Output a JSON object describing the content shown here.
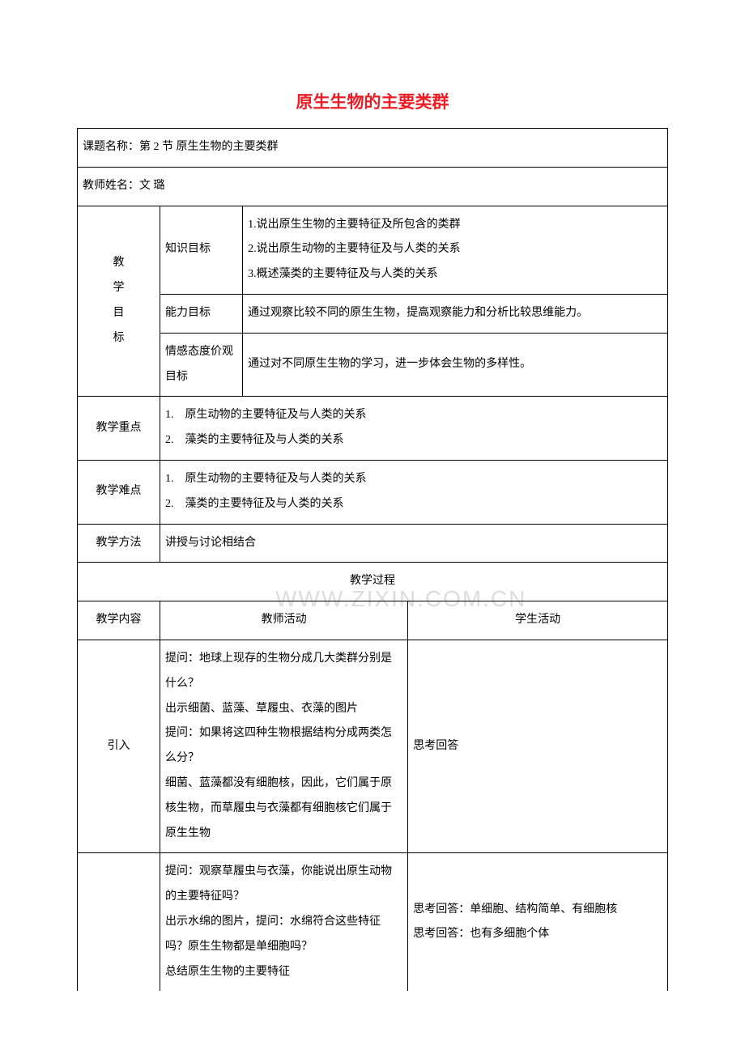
{
  "title": "原生生物的主要类群",
  "course_name_label": "课题名称：第 2 节 原生生物的主要类群",
  "teacher_label": "教师姓名：文 璐",
  "watermark": "WWW.ZIXIN.COM.CN",
  "objectives": {
    "label_vertical": [
      "教",
      "学",
      "目",
      "标"
    ],
    "knowledge": {
      "label": "知识目标",
      "items": [
        "1.说出原生生物的主要特征及所包含的类群",
        "2.说出原生动物的主要特征及与人类的关系",
        "3.概述藻类的主要特征及与人类的关系"
      ]
    },
    "ability": {
      "label": "能力目标",
      "text": "通过观察比较不同的原生生物，提高观察能力和分析比较思维能力。"
    },
    "emotion": {
      "label": "情感态度价观目标",
      "text": "通过对不同原生生物的学习，进一步体会生物的多样性。"
    }
  },
  "key_point": {
    "label": "教学重点",
    "items": [
      "1.　原生动物的主要特征及与人类的关系",
      "2.　藻类的主要特征及与人类的关系"
    ]
  },
  "difficulty": {
    "label": "教学难点",
    "items": [
      "1.　原生动物的主要特征及与人类的关系",
      "2.　藻类的主要特征及与人类的关系"
    ]
  },
  "method": {
    "label": "教学方法",
    "text": "讲授与讨论相结合"
  },
  "process_header": "教学过程",
  "process_columns": {
    "content": "教学内容",
    "teacher": "教师活动",
    "student": "学生活动"
  },
  "intro": {
    "label": "引入",
    "teacher_text": "提问：地球上现存的生物分成几大类群分别是什么？\n出示细菌、蓝藻、草履虫、衣藻的图片\n提问：如果将这四种生物根据结构分成两类怎么分？\n细菌、蓝藻都没有细胞核，因此，它们属于原核生物，而草履虫与衣藻都有细胞核它们属于原生生物",
    "student_text": "思考回答"
  },
  "section2": {
    "teacher_text": "提问：观察草履虫与衣藻，你能说出原生动物的主要特征吗？\n出示水绵的图片，提问：水绵符合这些特征吗？原生生物都是单细胞吗？\n总结原生生物的主要特征",
    "student_text": "思考回答：单细胞、结构简单、有细胞核\n思考回答：也有多细胞个体"
  },
  "colors": {
    "title_color": "#ed1c24",
    "border_color": "#000000",
    "watermark_color": "#dddddd",
    "background": "#ffffff"
  }
}
